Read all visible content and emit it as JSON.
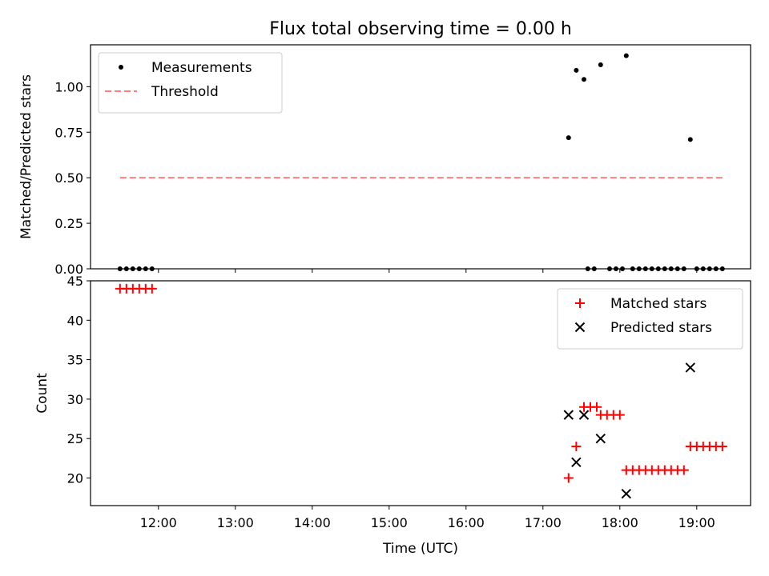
{
  "chart_data": [
    {
      "type": "scatter",
      "title": "Flux total observing time = 0.00 h",
      "xlabel": "",
      "ylabel": "Matched/Predicted stars",
      "ylim": [
        0,
        1.23
      ],
      "xlim": [
        "11:07",
        "19:42"
      ],
      "yticks": [
        "0.00",
        "0.25",
        "0.50",
        "0.75",
        "1.00"
      ],
      "legend_position": "top-left",
      "grid": false,
      "series": [
        {
          "name": "Measurements",
          "color": "#000000",
          "marker": "dot",
          "points": [
            [
              "11:30",
              0
            ],
            [
              "11:35",
              0
            ],
            [
              "11:40",
              0
            ],
            [
              "11:45",
              0
            ],
            [
              "11:50",
              0
            ],
            [
              "11:55",
              0
            ],
            [
              "17:20",
              0.72
            ],
            [
              "17:26",
              1.09
            ],
            [
              "17:32",
              1.04
            ],
            [
              "17:45",
              1.12
            ],
            [
              "18:05",
              1.17
            ],
            [
              "18:55",
              0.71
            ],
            [
              "17:35",
              0
            ],
            [
              "17:40",
              0
            ],
            [
              "17:52",
              0
            ],
            [
              "17:57",
              0
            ],
            [
              "18:02",
              0
            ],
            [
              "18:10",
              0
            ],
            [
              "18:15",
              0
            ],
            [
              "18:20",
              0
            ],
            [
              "18:25",
              0
            ],
            [
              "18:30",
              0
            ],
            [
              "18:35",
              0
            ],
            [
              "18:40",
              0
            ],
            [
              "18:45",
              0
            ],
            [
              "18:50",
              0
            ],
            [
              "19:00",
              0
            ],
            [
              "19:05",
              0
            ],
            [
              "19:10",
              0
            ],
            [
              "19:15",
              0
            ],
            [
              "19:20",
              0
            ]
          ]
        },
        {
          "name": "Threshold",
          "color": "#ff7f7f",
          "style": "dashed",
          "x": [
            "11:30",
            "19:20"
          ],
          "values": [
            0.5,
            0.5
          ]
        }
      ]
    },
    {
      "type": "scatter",
      "xlabel": "Time (UTC)",
      "ylabel": "Count",
      "ylim": [
        16.5,
        45
      ],
      "xlim": [
        "11:07",
        "19:42"
      ],
      "xticks": [
        "12:00",
        "13:00",
        "14:00",
        "15:00",
        "16:00",
        "17:00",
        "18:00",
        "19:00"
      ],
      "yticks": [
        "20",
        "25",
        "30",
        "35",
        "40",
        "45"
      ],
      "legend_position": "top-right",
      "grid": false,
      "series": [
        {
          "name": "Matched stars",
          "color": "#ff0000",
          "marker": "plus",
          "points": [
            [
              "11:30",
              44
            ],
            [
              "11:35",
              44
            ],
            [
              "11:40",
              44
            ],
            [
              "11:45",
              44
            ],
            [
              "11:50",
              44
            ],
            [
              "11:55",
              44
            ],
            [
              "17:20",
              20
            ],
            [
              "17:26",
              24
            ],
            [
              "17:32",
              29
            ],
            [
              "17:37",
              29
            ],
            [
              "17:42",
              29
            ],
            [
              "17:45",
              28
            ],
            [
              "17:50",
              28
            ],
            [
              "17:55",
              28
            ],
            [
              "18:00",
              28
            ],
            [
              "18:05",
              21
            ],
            [
              "18:10",
              21
            ],
            [
              "18:15",
              21
            ],
            [
              "18:20",
              21
            ],
            [
              "18:25",
              21
            ],
            [
              "18:30",
              21
            ],
            [
              "18:35",
              21
            ],
            [
              "18:40",
              21
            ],
            [
              "18:45",
              21
            ],
            [
              "18:50",
              21
            ],
            [
              "18:55",
              24
            ],
            [
              "19:00",
              24
            ],
            [
              "19:05",
              24
            ],
            [
              "19:10",
              24
            ],
            [
              "19:15",
              24
            ],
            [
              "19:20",
              24
            ]
          ]
        },
        {
          "name": "Predicted stars",
          "color": "#000000",
          "marker": "x",
          "points": [
            [
              "17:20",
              28
            ],
            [
              "17:26",
              22
            ],
            [
              "17:32",
              28
            ],
            [
              "17:45",
              25
            ],
            [
              "18:05",
              18
            ],
            [
              "18:55",
              34
            ]
          ]
        }
      ]
    }
  ]
}
